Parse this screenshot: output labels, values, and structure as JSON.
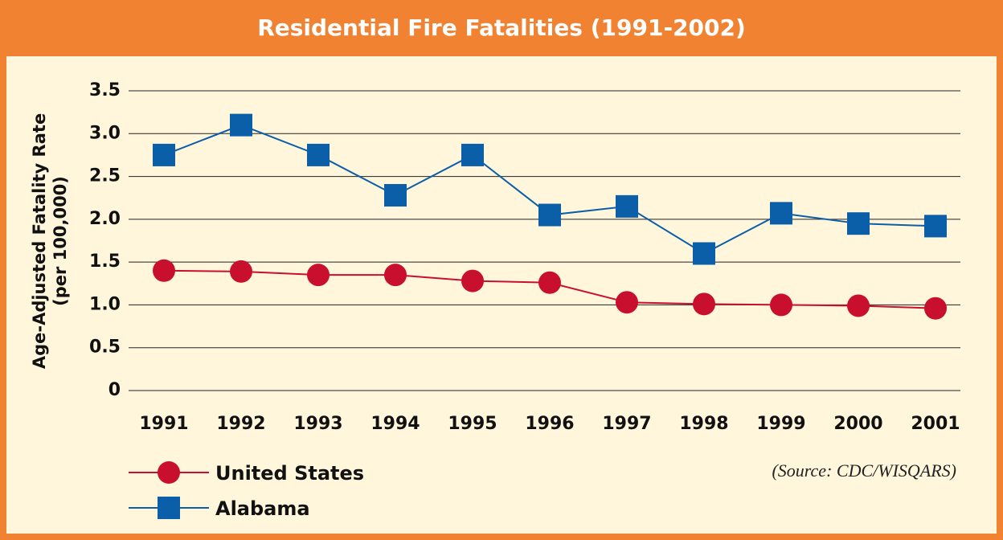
{
  "chart_data": {
    "type": "line",
    "title": "Residential Fire Fatalities (1991-2002)",
    "ylabel": "Age-Adjusted Fatality Rate",
    "ylabel2": "(per 100,000)",
    "source": "(Source: CDC/WISQARS)",
    "categories": [
      "1991",
      "1992",
      "1993",
      "1994",
      "1995",
      "1996",
      "1997",
      "1998",
      "1999",
      "2000",
      "2001"
    ],
    "series": [
      {
        "name": "United States",
        "color": "#c8102e",
        "marker": "circle",
        "values": [
          1.4,
          1.39,
          1.35,
          1.35,
          1.28,
          1.26,
          1.03,
          1.01,
          1.0,
          0.99,
          0.96
        ]
      },
      {
        "name": "Alabama",
        "color": "#0b5ea8",
        "marker": "square",
        "values": [
          2.75,
          3.1,
          2.75,
          2.28,
          2.75,
          2.05,
          2.15,
          1.6,
          2.07,
          1.95,
          1.92
        ]
      }
    ],
    "ylim": [
      0,
      3.5
    ],
    "yticks": [
      0,
      0.5,
      {
        "value": 1,
        "label": "1.0"
      },
      1.5,
      {
        "value": 2,
        "label": "2.0"
      },
      2.5,
      {
        "value": 3,
        "label": "3.0"
      },
      3.5
    ],
    "grid": true
  }
}
